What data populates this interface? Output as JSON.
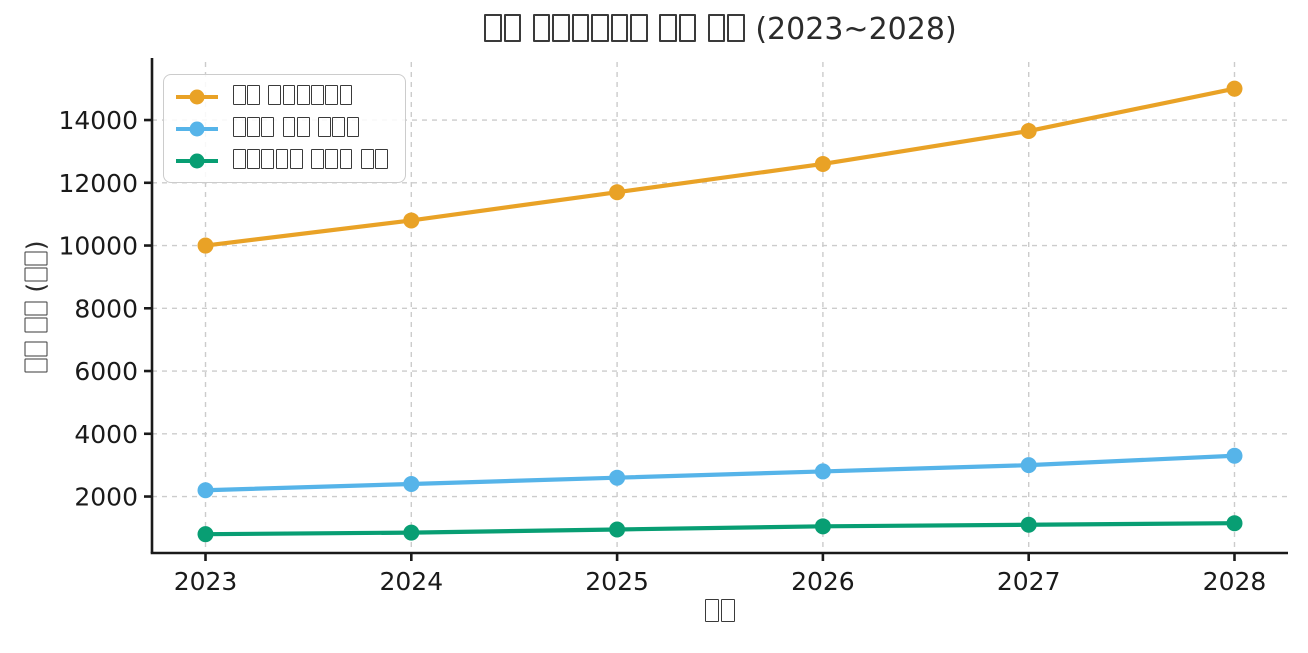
{
  "note": "Korean text in the source image is rendered as missing-glyph tofu boxes; each box is represented here by the character ▯",
  "chart_data": {
    "type": "line",
    "title": "▯▯ ▯▯▯▯▯▯ ▯▯ ▯▯ (2023~2028)",
    "xlabel": "▯▯",
    "ylabel": "▯▯ ▯▯ (▯▯)",
    "categories": [
      2023,
      2024,
      2025,
      2026,
      2027,
      2028
    ],
    "series": [
      {
        "name": "▯▯ ▯▯▯▯▯▯",
        "color": "#E9A226",
        "values": [
          10000,
          10800,
          11700,
          12600,
          13650,
          15000
        ]
      },
      {
        "name": "▯▯▯ ▯▯ ▯▯▯",
        "color": "#56B4E9",
        "values": [
          2200,
          2400,
          2600,
          2800,
          3000,
          3300
        ]
      },
      {
        "name": "▯▯▯▯▯ ▯▯▯ ▯▯",
        "color": "#089E73",
        "values": [
          800,
          850,
          950,
          1050,
          1100,
          1150
        ]
      }
    ],
    "y_ticks": [
      2000,
      4000,
      6000,
      8000,
      10000,
      12000,
      14000
    ],
    "ylim": [
      200,
      15850
    ],
    "xlim": [
      2022.74,
      2028.26
    ],
    "grid": true,
    "grid_style": "dashed",
    "legend_position": "upper left",
    "background": "#ffffff",
    "axis_color": "#1a1a1a",
    "grid_color": "#cccccc"
  }
}
